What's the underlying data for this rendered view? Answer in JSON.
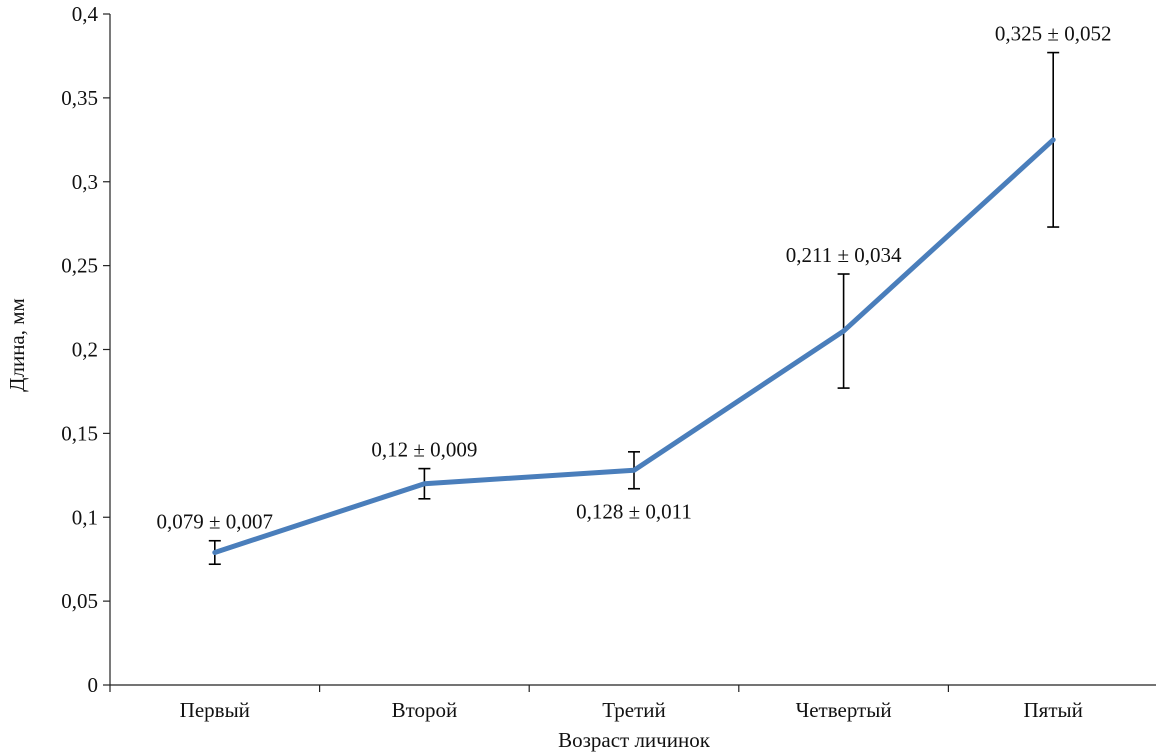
{
  "chart_data": {
    "type": "line",
    "xlabel": "Возраст личинок",
    "ylabel": "Длина, мм",
    "categories": [
      "Первый",
      "Второй",
      "Третий",
      "Четвертый",
      "Пятый"
    ],
    "values": [
      0.079,
      0.12,
      0.128,
      0.211,
      0.325
    ],
    "errors": [
      0.007,
      0.009,
      0.011,
      0.034,
      0.052
    ],
    "data_labels": [
      "0,079 ± 0,007",
      "0,12 ± 0,009",
      "0,128 ± 0,011",
      "0,211 ± 0,034",
      "0,325 ± 0,052"
    ],
    "data_label_positions": [
      "above",
      "above",
      "below",
      "above",
      "above"
    ],
    "ylim": [
      0,
      0.4
    ],
    "yticks": [
      0,
      0.05,
      0.1,
      0.15,
      0.2,
      0.25,
      0.3,
      0.35,
      0.4
    ],
    "ytick_labels": [
      "0",
      "0,05",
      "0,1",
      "0,15",
      "0,2",
      "0,25",
      "0,3",
      "0,35",
      "0,4"
    ],
    "grid": false,
    "legend": "none",
    "line_color": "#4a7ebb",
    "errorbar_color": "#000000"
  }
}
